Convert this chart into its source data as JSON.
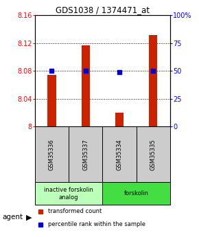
{
  "title": "GDS1038 / 1374471_at",
  "samples": [
    "GSM35336",
    "GSM35337",
    "GSM35334",
    "GSM35335"
  ],
  "red_values": [
    8.075,
    8.117,
    8.02,
    8.132
  ],
  "blue_values": [
    50,
    50,
    49,
    50
  ],
  "ylim_left": [
    8.0,
    8.16
  ],
  "ylim_right": [
    0,
    100
  ],
  "yticks_left": [
    8.0,
    8.04,
    8.08,
    8.12,
    8.16
  ],
  "ytick_labels_left": [
    "8",
    "8.04",
    "8.08",
    "8.12",
    "8.16"
  ],
  "yticks_right": [
    0,
    25,
    50,
    75,
    100
  ],
  "ytick_labels_right": [
    "0",
    "25",
    "50",
    "75",
    "100%"
  ],
  "groups": [
    {
      "label": "inactive forskolin\nanalog",
      "color": "#bbffbb",
      "span": [
        0,
        2
      ]
    },
    {
      "label": "forskolin",
      "color": "#44dd44",
      "span": [
        2,
        4
      ]
    }
  ],
  "bar_color": "#cc2200",
  "dot_color": "#0000cc",
  "agent_label": "agent",
  "legend_red": "transformed count",
  "legend_blue": "percentile rank within the sample",
  "background_color": "#ffffff",
  "sample_box_color": "#cccccc",
  "bar_width": 0.25
}
